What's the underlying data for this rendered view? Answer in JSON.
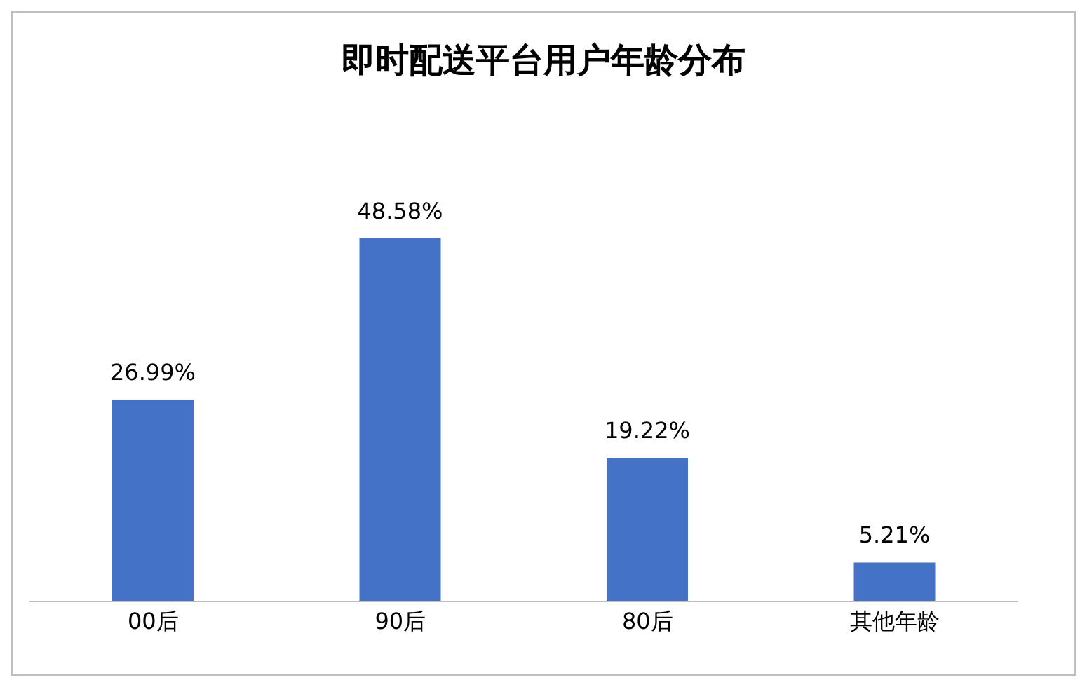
{
  "chart_data": {
    "type": "bar",
    "title": "即时配送平台用户年龄分布",
    "categories": [
      "00后",
      "90后",
      "80后",
      "其他年龄"
    ],
    "values": [
      26.99,
      48.58,
      19.22,
      5.21
    ],
    "value_labels": [
      "26.99%",
      "48.58%",
      "19.22%",
      "5.21%"
    ],
    "color": "#4472c4",
    "grid": false,
    "legend": false
  }
}
